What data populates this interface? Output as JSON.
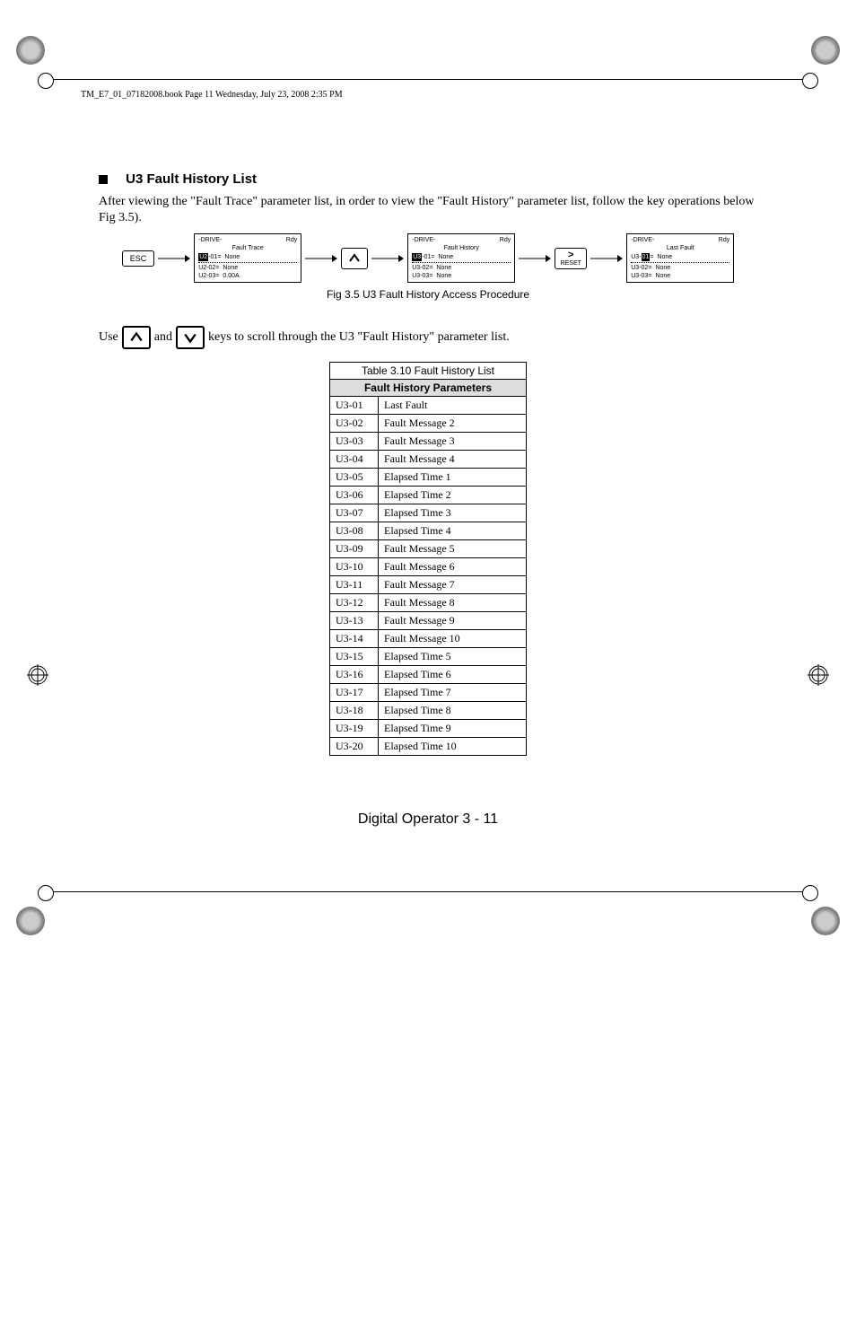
{
  "header_info": "TM_E7_01_07182008.book  Page 11  Wednesday, July 23, 2008  2:35 PM",
  "section": {
    "title": "U3 Fault History List",
    "body": "After viewing the \"Fault Trace\" parameter list, in order to view the \"Fault History\" parameter list, follow the key operations below Fig 3.5)."
  },
  "flowchart": {
    "esc_label": "ESC",
    "reset_top": ">",
    "reset_bottom": "RESET",
    "caption": "Fig 3.5  U3 Fault History Access Procedure",
    "lcd1": {
      "top_left": "-DRIVE-",
      "top_right": "Rdy",
      "line1": "Fault Trace",
      "hl": "U2",
      "l2a": "-01=",
      "l2b": "None",
      "l3a": "U2-02=",
      "l3b": "None",
      "l4a": "U2-03=",
      "l4b": "0.00A"
    },
    "lcd2": {
      "top_left": "-DRIVE-",
      "top_right": "Rdy",
      "line1": "Fault History",
      "hl": "U3",
      "l2a": "-01=",
      "l2b": "None",
      "l3a": "U3-02=",
      "l3b": "None",
      "l4a": "U3-03=",
      "l4b": "None"
    },
    "lcd3": {
      "top_left": "-DRIVE-",
      "top_right": "Rdy",
      "line1": "Last Fault",
      "pre": "U3-",
      "hl": "01",
      "l2a": "=",
      "l2b": "None",
      "l3a": "U3-02=",
      "l3b": "None",
      "l4a": "U3-03=",
      "l4b": "None"
    }
  },
  "use_line": {
    "prefix": "Use",
    "mid": "and",
    "suffix": " keys to scroll through the U3 \"Fault History\" parameter list."
  },
  "table": {
    "title": "Table 3.10  Fault History List",
    "sub_header": "Fault History Parameters",
    "rows": [
      {
        "c": "U3-01",
        "d": "Last Fault"
      },
      {
        "c": "U3-02",
        "d": "Fault Message 2"
      },
      {
        "c": "U3-03",
        "d": "Fault Message 3"
      },
      {
        "c": "U3-04",
        "d": "Fault Message 4"
      },
      {
        "c": "U3-05",
        "d": "Elapsed Time 1"
      },
      {
        "c": "U3-06",
        "d": "Elapsed Time 2"
      },
      {
        "c": "U3-07",
        "d": "Elapsed Time 3"
      },
      {
        "c": "U3-08",
        "d": "Elapsed Time 4"
      },
      {
        "c": "U3-09",
        "d": "Fault Message 5"
      },
      {
        "c": "U3-10",
        "d": "Fault Message 6"
      },
      {
        "c": "U3-11",
        "d": "Fault Message 7"
      },
      {
        "c": "U3-12",
        "d": "Fault Message 8"
      },
      {
        "c": "U3-13",
        "d": "Fault Message 9"
      },
      {
        "c": "U3-14",
        "d": "Fault Message 10"
      },
      {
        "c": "U3-15",
        "d": "Elapsed Time 5"
      },
      {
        "c": "U3-16",
        "d": "Elapsed Time 6"
      },
      {
        "c": "U3-17",
        "d": "Elapsed Time 7"
      },
      {
        "c": "U3-18",
        "d": "Elapsed Time 8"
      },
      {
        "c": "U3-19",
        "d": "Elapsed Time 9"
      },
      {
        "c": "U3-20",
        "d": "Elapsed Time 10"
      }
    ]
  },
  "footer": "Digital Operator  3 - 11"
}
